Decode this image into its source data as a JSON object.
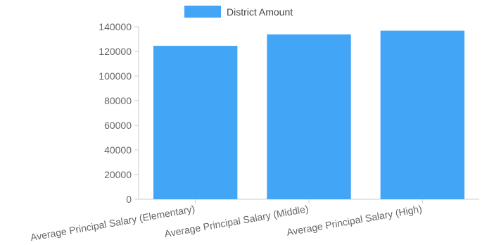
{
  "chart_data": {
    "type": "bar",
    "categories": [
      "Average Principal Salary (Elementary)",
      "Average Principal Salary (Middle)",
      "Average Principal Salary (High)"
    ],
    "series": [
      {
        "name": "District Amount",
        "values": [
          124500,
          133800,
          136800
        ],
        "color": "#42a5f5"
      }
    ],
    "yticks": [
      "0",
      "20000",
      "40000",
      "60000",
      "80000",
      "100000",
      "120000",
      "140000"
    ],
    "ylim": [
      0,
      140000
    ],
    "legend_position": "top",
    "grid": false,
    "xlabel_rotation": "rotated"
  }
}
